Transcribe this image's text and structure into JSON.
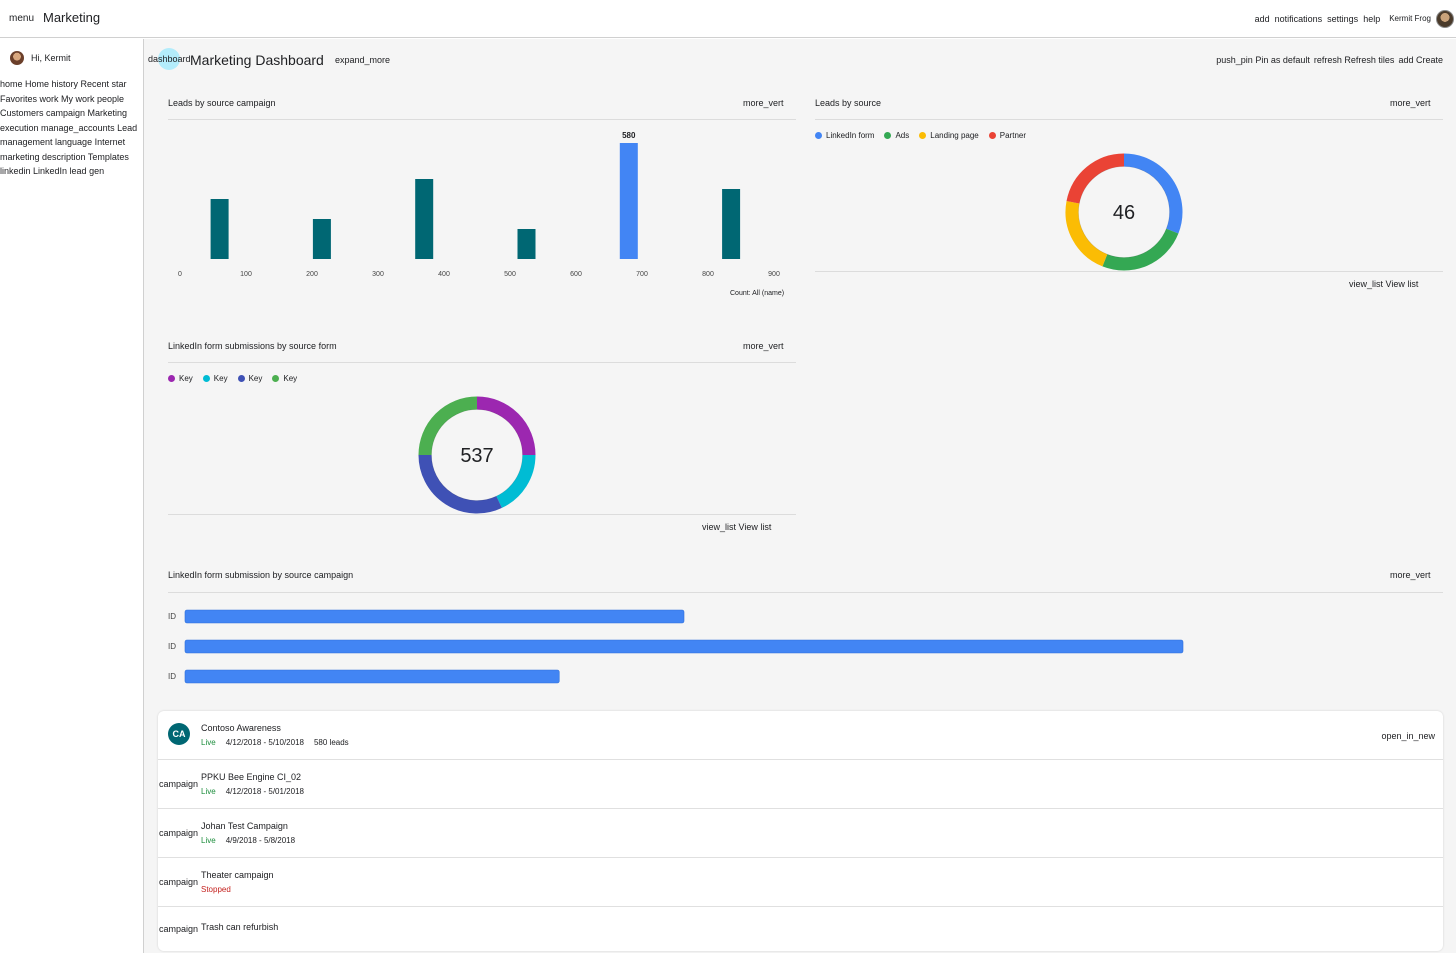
{
  "topbar": {
    "menu_icon": "menu",
    "title": "Marketing",
    "add_icon": "add",
    "notifications_icon": "notifications",
    "settings_icon": "settings",
    "help_icon": "help",
    "user_name": "Kermit Frog"
  },
  "sidebar": {
    "greeting": "Hi, Kermit",
    "nav_text": "home Home history Recent star Favorites work My work people Customers campaign Marketing execution manage_accounts Lead management language Internet marketing description Templates linkedin LinkedIn lead gen"
  },
  "header": {
    "icon": "dashboard",
    "title": "Marketing Dashboard",
    "expand_icon": "expand_more",
    "pin_icon": "push_pin",
    "pin_label": "Pin as default",
    "refresh_icon": "refresh",
    "refresh_label": "Refresh tiles",
    "create_icon": "add",
    "create_label": "Create"
  },
  "card1": {
    "title": "Leads by source campaign",
    "more": "more_vert",
    "footer": "Count: All (name)"
  },
  "card2": {
    "title": "Leads by source",
    "more": "more_vert",
    "view_icon": "view_list",
    "view_label": "View list"
  },
  "card3": {
    "title": "LinkedIn form submissions by source form",
    "more": "more_vert",
    "view_icon": "view_list",
    "view_label": "View list"
  },
  "card4": {
    "title": "LinkedIn form submission by source campaign",
    "more": "more_vert"
  },
  "chart_data": [
    {
      "type": "bar",
      "title": "Leads by source campaign",
      "x_ticks": [
        "0",
        "100",
        "200",
        "300",
        "400",
        "500",
        "600",
        "700",
        "800",
        "900"
      ],
      "x": [
        60,
        215,
        370,
        525,
        680,
        835
      ],
      "values": [
        300,
        200,
        400,
        150,
        580,
        350
      ],
      "highlight_index": 4,
      "highlight_label": "580",
      "colors": {
        "bar": "#006773",
        "highlight": "#4285f4"
      },
      "ylim": [
        0,
        600
      ],
      "grid": false
    },
    {
      "type": "pie",
      "title": "Leads by source",
      "center_label": "46",
      "labels": [
        "LinkedIn form",
        "Ads",
        "Landing page",
        "Partner"
      ],
      "values": [
        31,
        25,
        22,
        22
      ],
      "colors": [
        "#4285f4",
        "#34a853",
        "#fbbc04",
        "#ea4335"
      ],
      "legend": "top-left"
    },
    {
      "type": "pie",
      "title": "LinkedIn form submissions by source form",
      "center_label": "537",
      "labels": [
        "Key",
        "Key",
        "Key",
        "Key"
      ],
      "values": [
        25,
        18,
        32,
        25
      ],
      "colors": [
        "#9c27b0",
        "#00bcd4",
        "#3f51b5",
        "#4caf50"
      ],
      "legend": "top-left"
    },
    {
      "type": "bar",
      "orientation": "horizontal",
      "title": "LinkedIn form submission by source campaign",
      "categories": [
        "ID",
        "ID",
        "ID"
      ],
      "values": [
        50,
        100,
        37.5
      ],
      "colors": {
        "bar": "#4285f4"
      }
    }
  ],
  "campaigns": {
    "open_icon": "open_in_new",
    "rows": [
      {
        "avatar": "CA",
        "name": "Contoso Awareness",
        "status": "Live",
        "dates": "4/12/2018 - 5/10/2018",
        "leads": "580 leads"
      },
      {
        "icon": "campaign",
        "name": "PPKU Bee Engine CI_02",
        "status": "Live",
        "dates": "4/12/2018 - 5/01/2018"
      },
      {
        "icon": "campaign",
        "name": "Johan Test Campaign",
        "status": "Live",
        "dates": "4/9/2018 - 5/8/2018"
      },
      {
        "icon": "campaign",
        "name": "Theater campaign",
        "status": "Stopped"
      },
      {
        "icon": "campaign",
        "name": "Trash can refurbish"
      }
    ]
  }
}
